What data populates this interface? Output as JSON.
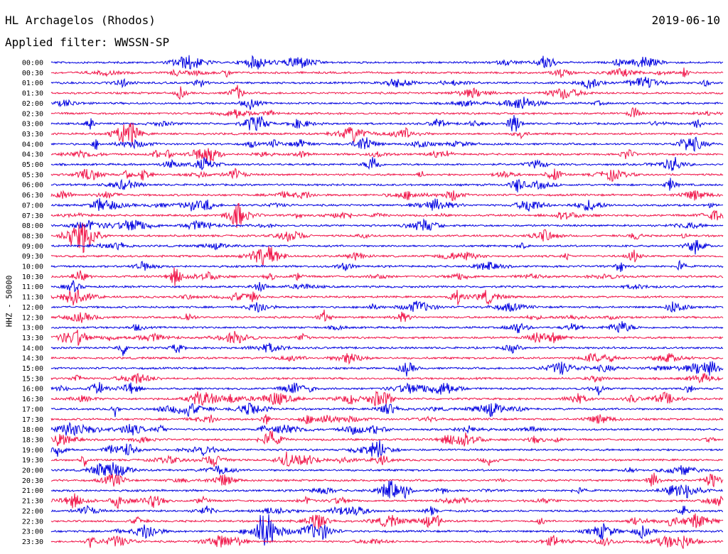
{
  "header": {
    "station": "HL Archagelos (Rhodos)",
    "date": "2019-06-10",
    "filter": "Applied filter: WWSSN-SP"
  },
  "chart_data": {
    "type": "line",
    "ylabel": "HHZ - 50000",
    "x_range_minutes": [
      0,
      30
    ],
    "rows": [
      "00:00",
      "00:30",
      "01:00",
      "01:30",
      "02:00",
      "02:30",
      "03:00",
      "03:30",
      "04:00",
      "04:30",
      "05:00",
      "05:30",
      "06:00",
      "06:30",
      "07:00",
      "07:30",
      "08:00",
      "08:30",
      "09:00",
      "09:30",
      "10:00",
      "10:30",
      "11:00",
      "11:30",
      "12:00",
      "12:30",
      "13:00",
      "13:30",
      "14:00",
      "14:30",
      "15:00",
      "15:30",
      "16:00",
      "16:30",
      "17:00",
      "17:30",
      "18:00",
      "18:30",
      "19:00",
      "19:30",
      "20:00",
      "20:30",
      "21:00",
      "21:30",
      "22:00",
      "22:30",
      "23:00",
      "23:30"
    ],
    "colors": [
      "#0000e0",
      "#f01448"
    ],
    "grid": false,
    "legend": "none"
  }
}
